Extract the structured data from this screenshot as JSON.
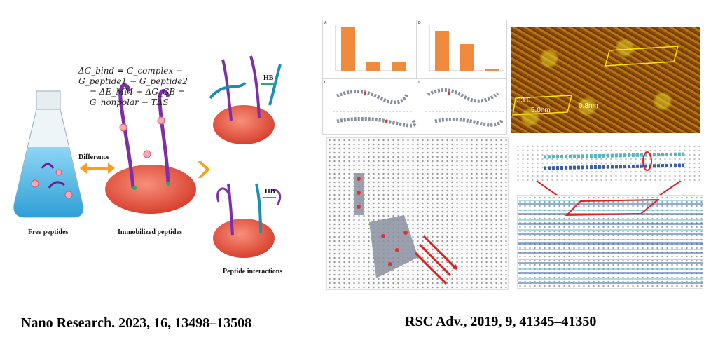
{
  "left_figure": {
    "equation_line1": "ΔG_bind = G_complex − G_peptide1 − G_peptide2",
    "equation_line2": "= ΔE_MM + ΔG_GB = G_nonpolar − TΔS",
    "arrow_label": "Difference",
    "label_free": "Free peptides",
    "label_immobilized": "Immobilized peptides",
    "label_interactions": "Peptide interactions",
    "hb_label_top": "HB",
    "hb_label_bottom": "HB",
    "colors": {
      "peptide": "#7b2fa8",
      "peptide2": "#1a8fb5",
      "surface": "#e8584a",
      "arrow": "#f5a020",
      "liquid": "#6fc6ec"
    }
  },
  "right_figure": {
    "panel_labels": [
      "A",
      "B",
      "C",
      "D"
    ],
    "chart_A_values": [
      100,
      20,
      20
    ],
    "chart_B_values": [
      90,
      60,
      2
    ],
    "afm_label_angle": "33.0",
    "afm_label_width": "5.0nm",
    "afm_label_height": "0.8nm",
    "bar_color": "#f08a3c"
  },
  "citations": {
    "left": "Nano Research. 2023, 16, 13498–13508",
    "right": "RSC Adv., 2019, 9, 41345–41350"
  }
}
